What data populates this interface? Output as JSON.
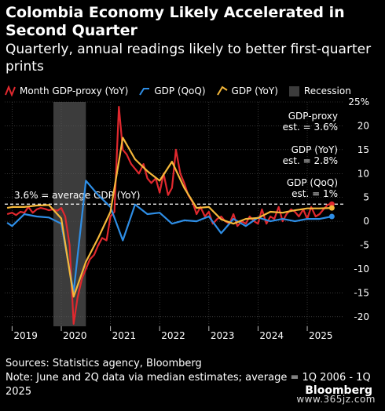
{
  "title": "Colombia Economy Likely Accelerated in Second Quarter",
  "subtitle": "Quarterly, annual readings likely to better first-quarter prints",
  "footer_sources": "Sources: Statistics agency, Bloomberg",
  "footer_note": "Note: June and 2Q data via median estimates; average = 1Q 2006 - 1Q 2025",
  "brand": "Bloomberg",
  "watermark": "www.365jz.com",
  "colors": {
    "red": "#e0282e",
    "blue": "#2e8ee6",
    "yellow": "#f5b83a",
    "recession": "#3c3c3c",
    "grid": "#5a5a5a",
    "background": "#000000"
  },
  "legend": [
    {
      "label": "Month GDP-proxy (YoY)",
      "icon": "zigzag-line-icon",
      "color": "#e0282e"
    },
    {
      "label": "GDP (QoQ)",
      "icon": "zigzag-line-icon",
      "color": "#2e8ee6"
    },
    {
      "label": "GDP (YoY)",
      "icon": "zigzag-line-icon",
      "color": "#f5b83a"
    },
    {
      "label": "Recession",
      "icon": "shaded-box-icon",
      "color": "#3c3c3c"
    }
  ],
  "chart_data": {
    "type": "line",
    "x_unit": "year",
    "xlim": [
      2018.85,
      2025.75
    ],
    "ylim": [
      -22,
      25
    ],
    "y_ticks": [
      25,
      20,
      15,
      10,
      5,
      0,
      -5,
      -10,
      -15,
      -20
    ],
    "y_tick_labels": [
      "25%",
      "20",
      "15",
      "10",
      "5",
      "0",
      "-5",
      "-10",
      "-15",
      "-20"
    ],
    "x_ticks": [
      2019,
      2020,
      2021,
      2022,
      2023,
      2024,
      2025
    ],
    "x_tick_labels": [
      "2019",
      "2020",
      "2021",
      "2022",
      "2023",
      "2024",
      "2025"
    ],
    "grid": true,
    "recession": {
      "start": 2019.84,
      "end": 2020.5
    },
    "average_line": {
      "value": 3.6,
      "label": "3.6% = average GDP (YoY)"
    },
    "series": [
      {
        "name": "Month GDP-proxy (YoY)",
        "color": "#e0282e",
        "width": 2.2,
        "x": [
          2018.9,
          2019.0,
          2019.08,
          2019.17,
          2019.25,
          2019.33,
          2019.42,
          2019.5,
          2019.58,
          2019.67,
          2019.75,
          2019.83,
          2019.92,
          2020.0,
          2020.08,
          2020.17,
          2020.25,
          2020.33,
          2020.42,
          2020.5,
          2020.58,
          2020.67,
          2020.75,
          2020.83,
          2020.92,
          2021.0,
          2021.08,
          2021.17,
          2021.25,
          2021.33,
          2021.42,
          2021.5,
          2021.58,
          2021.67,
          2021.75,
          2021.83,
          2021.92,
          2022.0,
          2022.08,
          2022.17,
          2022.25,
          2022.33,
          2022.42,
          2022.5,
          2022.58,
          2022.67,
          2022.75,
          2022.83,
          2022.92,
          2023.0,
          2023.08,
          2023.17,
          2023.25,
          2023.33,
          2023.42,
          2023.5,
          2023.58,
          2023.67,
          2023.75,
          2023.83,
          2023.92,
          2024.0,
          2024.08,
          2024.17,
          2024.25,
          2024.33,
          2024.42,
          2024.5,
          2024.58,
          2024.67,
          2024.75,
          2024.83,
          2024.92,
          2025.0,
          2025.08,
          2025.17,
          2025.25,
          2025.33,
          2025.42,
          2025.5
        ],
        "y": [
          1.5,
          1.8,
          1.3,
          2.0,
          1.8,
          3.0,
          1.8,
          2.5,
          2.8,
          2.6,
          2.3,
          2.5,
          2.2,
          2.8,
          1.0,
          -5.0,
          -21.5,
          -16.0,
          -12.0,
          -10.0,
          -8.0,
          -7.0,
          -5.0,
          -3.5,
          -4.0,
          1.0,
          2.0,
          24.0,
          15.0,
          14.0,
          12.0,
          11.0,
          10.0,
          12.0,
          9.0,
          8.0,
          9.0,
          6.0,
          10.0,
          5.5,
          7.0,
          15.0,
          10.0,
          8.0,
          5.5,
          4.0,
          1.5,
          3.0,
          1.0,
          2.0,
          -0.5,
          0.5,
          1.0,
          0.0,
          -0.5,
          1.5,
          -1.0,
          0.0,
          -0.5,
          1.0,
          0.0,
          -0.5,
          2.5,
          -0.5,
          1.0,
          0.5,
          3.0,
          0.0,
          1.5,
          2.5,
          2.0,
          1.0,
          2.5,
          0.5,
          3.0,
          1.0,
          1.5,
          2.5,
          3.5,
          3.6
        ],
        "end_marker": true
      },
      {
        "name": "GDP (QoQ)",
        "color": "#2e8ee6",
        "width": 2.2,
        "x": [
          2018.9,
          2019.0,
          2019.25,
          2019.5,
          2019.75,
          2020.0,
          2020.25,
          2020.5,
          2020.75,
          2021.0,
          2021.25,
          2021.5,
          2021.75,
          2022.0,
          2022.25,
          2022.5,
          2022.75,
          2023.0,
          2023.25,
          2023.5,
          2023.75,
          2024.0,
          2024.25,
          2024.5,
          2024.75,
          2025.0,
          2025.25,
          2025.5
        ],
        "y": [
          -0.3,
          -1.0,
          1.5,
          1.0,
          0.8,
          -0.5,
          -14.8,
          8.5,
          5.5,
          3.0,
          -4.0,
          3.5,
          1.5,
          1.8,
          -0.5,
          0.2,
          0.0,
          1.0,
          -2.5,
          0.5,
          -1.0,
          0.8,
          0.0,
          0.5,
          0.0,
          0.5,
          0.5,
          1.0
        ],
        "end_marker": true
      },
      {
        "name": "GDP (YoY)",
        "color": "#f5b83a",
        "width": 2.2,
        "x": [
          2018.9,
          2019.0,
          2019.25,
          2019.5,
          2019.75,
          2020.0,
          2020.25,
          2020.5,
          2020.75,
          2021.0,
          2021.25,
          2021.5,
          2021.75,
          2022.0,
          2022.25,
          2022.5,
          2022.75,
          2023.0,
          2023.25,
          2023.5,
          2023.75,
          2024.0,
          2024.25,
          2024.5,
          2024.75,
          2025.0,
          2025.25,
          2025.5
        ],
        "y": [
          2.8,
          3.0,
          3.0,
          3.3,
          3.4,
          0.6,
          -15.8,
          -8.5,
          -3.5,
          2.0,
          17.5,
          13.0,
          10.5,
          8.5,
          12.5,
          7.0,
          2.8,
          3.0,
          0.4,
          -0.5,
          0.5,
          0.7,
          2.0,
          1.8,
          2.3,
          2.7,
          2.7,
          2.8
        ],
        "end_marker": true
      }
    ],
    "annotations": [
      {
        "line1": "GDP-proxy",
        "line2": "est. = 3.6%"
      },
      {
        "line1": "GDP (YoY)",
        "line2": "est. = 2.8%"
      },
      {
        "line1": "GDP (QoQ)",
        "line2": "est. = 1%"
      }
    ]
  }
}
